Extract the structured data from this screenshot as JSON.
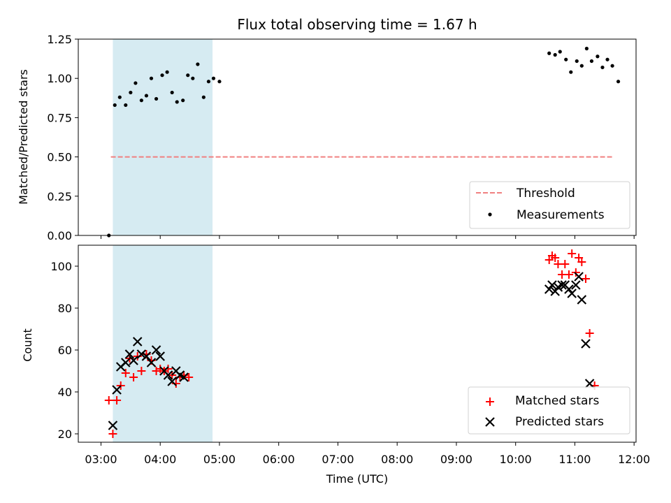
{
  "chart_data": [
    {
      "type": "scatter",
      "title": "Flux total observing time = 1.67 h",
      "xlabel": "",
      "ylabel": "Matched/Predicted stars",
      "ylim": [
        0,
        1.25
      ],
      "yticks": [
        "0.00",
        "0.25",
        "0.50",
        "0.75",
        "1.00",
        "1.25"
      ],
      "xlim": [
        "02:37",
        "12:02"
      ],
      "shaded_span": [
        "03:12",
        "04:53"
      ],
      "threshold": {
        "name": "Threshold",
        "y": 0.5,
        "x": [
          "03:10",
          "11:38"
        ],
        "color": "#f08080"
      },
      "series": [
        {
          "name": "Measurements",
          "color": "#000000",
          "points": [
            [
              "03:08",
              0.0
            ],
            [
              "03:14",
              0.83
            ],
            [
              "03:19",
              0.88
            ],
            [
              "03:25",
              0.83
            ],
            [
              "03:30",
              0.91
            ],
            [
              "03:35",
              0.97
            ],
            [
              "03:41",
              0.86
            ],
            [
              "03:46",
              0.89
            ],
            [
              "03:51",
              1.0
            ],
            [
              "03:56",
              0.87
            ],
            [
              "04:02",
              1.02
            ],
            [
              "04:07",
              1.04
            ],
            [
              "04:12",
              0.91
            ],
            [
              "04:17",
              0.85
            ],
            [
              "04:23",
              0.86
            ],
            [
              "04:28",
              1.02
            ],
            [
              "04:33",
              1.0
            ],
            [
              "04:38",
              1.09
            ],
            [
              "04:44",
              0.88
            ],
            [
              "04:49",
              0.98
            ],
            [
              "04:54",
              1.0
            ],
            [
              "05:00",
              0.98
            ],
            [
              "10:34",
              1.16
            ],
            [
              "10:40",
              1.15
            ],
            [
              "10:45",
              1.17
            ],
            [
              "10:51",
              1.12
            ],
            [
              "10:56",
              1.04
            ],
            [
              "11:02",
              1.11
            ],
            [
              "11:07",
              1.08
            ],
            [
              "11:12",
              1.19
            ],
            [
              "11:17",
              1.11
            ],
            [
              "11:23",
              1.14
            ],
            [
              "11:28",
              1.07
            ],
            [
              "11:33",
              1.12
            ],
            [
              "11:38",
              1.08
            ],
            [
              "11:44",
              0.98
            ]
          ]
        }
      ]
    },
    {
      "type": "scatter",
      "title": "",
      "xlabel": "Time (UTC)",
      "ylabel": "Count",
      "ylim": [
        16,
        110
      ],
      "yticks": [
        "20",
        "40",
        "60",
        "80",
        "100"
      ],
      "xlim": [
        "02:37",
        "12:02"
      ],
      "xticks": [
        "03:00",
        "04:00",
        "05:00",
        "06:00",
        "07:00",
        "08:00",
        "09:00",
        "10:00",
        "11:00",
        "12:00"
      ],
      "shaded_span": [
        "03:12",
        "04:53"
      ],
      "series": [
        {
          "name": "Matched stars",
          "marker": "plus",
          "color": "#ff0000",
          "points": [
            [
              "03:08",
              36
            ],
            [
              "03:12",
              20
            ],
            [
              "03:16",
              36
            ],
            [
              "03:20",
              43
            ],
            [
              "03:25",
              49
            ],
            [
              "03:29",
              56
            ],
            [
              "03:33",
              47
            ],
            [
              "03:37",
              57
            ],
            [
              "03:41",
              50
            ],
            [
              "03:46",
              58
            ],
            [
              "03:51",
              55
            ],
            [
              "03:56",
              50
            ],
            [
              "04:00",
              51
            ],
            [
              "04:04",
              50
            ],
            [
              "04:08",
              51
            ],
            [
              "04:12",
              48
            ],
            [
              "04:16",
              44
            ],
            [
              "04:20",
              47
            ],
            [
              "04:24",
              48
            ],
            [
              "04:29",
              47
            ],
            [
              "10:34",
              103
            ],
            [
              "10:37",
              105
            ],
            [
              "10:40",
              104
            ],
            [
              "10:43",
              101
            ],
            [
              "10:47",
              96
            ],
            [
              "10:50",
              101
            ],
            [
              "10:54",
              96
            ],
            [
              "10:57",
              106
            ],
            [
              "11:01",
              97
            ],
            [
              "11:04",
              104
            ],
            [
              "11:07",
              102
            ],
            [
              "11:11",
              94
            ],
            [
              "11:15",
              68
            ],
            [
              "11:20",
              43
            ]
          ]
        },
        {
          "name": "Predicted stars",
          "marker": "x",
          "color": "#000000",
          "points": [
            [
              "03:12",
              24
            ],
            [
              "03:16",
              41
            ],
            [
              "03:20",
              52
            ],
            [
              "03:25",
              54
            ],
            [
              "03:29",
              58
            ],
            [
              "03:33",
              55
            ],
            [
              "03:37",
              64
            ],
            [
              "03:41",
              58
            ],
            [
              "03:46",
              57
            ],
            [
              "03:51",
              54
            ],
            [
              "03:56",
              60
            ],
            [
              "04:00",
              57
            ],
            [
              "04:04",
              50
            ],
            [
              "04:08",
              48
            ],
            [
              "04:12",
              45
            ],
            [
              "04:16",
              50
            ],
            [
              "04:20",
              48
            ],
            [
              "04:24",
              47
            ],
            [
              "10:34",
              89
            ],
            [
              "10:37",
              91
            ],
            [
              "10:40",
              88
            ],
            [
              "10:43",
              90
            ],
            [
              "10:47",
              91
            ],
            [
              "10:50",
              91
            ],
            [
              "10:54",
              89
            ],
            [
              "10:57",
              87
            ],
            [
              "11:01",
              91
            ],
            [
              "11:04",
              95
            ],
            [
              "11:07",
              84
            ],
            [
              "11:11",
              63
            ],
            [
              "11:15",
              44
            ]
          ]
        }
      ]
    }
  ]
}
